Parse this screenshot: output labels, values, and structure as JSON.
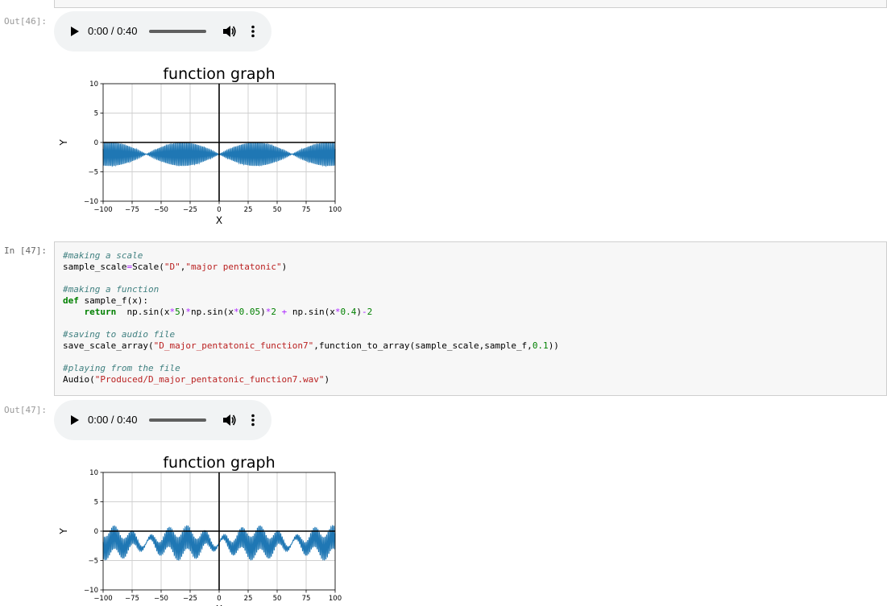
{
  "cells": {
    "out46": {
      "prompt": "Out[46]:",
      "audio": {
        "time": "0:00 / 0:40",
        "play_icon": "play-icon",
        "volume_icon": "volume-icon",
        "menu_icon": "more-vert-icon"
      }
    },
    "in47": {
      "prompt": "In [47]:",
      "code": [
        {
          "t": "cm",
          "v": "#making a scale"
        },
        {
          "t": "mix",
          "parts": [
            [
              "",
              "sample_scale"
            ],
            [
              "op",
              "="
            ],
            [
              "",
              "Scale("
            ],
            [
              "st",
              "\"D\""
            ],
            [
              "",
              ","
            ],
            [
              "st",
              "\"major pentatonic\""
            ],
            [
              "",
              ")"
            ]
          ]
        },
        {
          "t": "blank"
        },
        {
          "t": "cm",
          "v": "#making a function"
        },
        {
          "t": "mix",
          "parts": [
            [
              "kw",
              "def"
            ],
            [
              "",
              " sample_f(x):"
            ]
          ]
        },
        {
          "t": "mix",
          "parts": [
            [
              "",
              "    "
            ],
            [
              "kw",
              "return"
            ],
            [
              "",
              "  np.sin(x"
            ],
            [
              "op",
              "*"
            ],
            [
              "nu",
              "5"
            ],
            [
              "",
              ")"
            ],
            [
              "op",
              "*"
            ],
            [
              "",
              "np.sin(x"
            ],
            [
              "op",
              "*"
            ],
            [
              "nu",
              "0.05"
            ],
            [
              "",
              ")"
            ],
            [
              "op",
              "*"
            ],
            [
              "nu",
              "2"
            ],
            [
              "",
              " "
            ],
            [
              "op",
              "+"
            ],
            [
              "",
              " np.sin(x"
            ],
            [
              "op",
              "*"
            ],
            [
              "nu",
              "0.4"
            ],
            [
              "",
              ")"
            ],
            [
              "op",
              "-"
            ],
            [
              "nu",
              "2"
            ]
          ]
        },
        {
          "t": "blank"
        },
        {
          "t": "cm",
          "v": "#saving to audio file"
        },
        {
          "t": "mix",
          "parts": [
            [
              "",
              "save_scale_array("
            ],
            [
              "st",
              "\"D_major_pentatonic_function7\""
            ],
            [
              "",
              ",function_to_array(sample_scale,sample_f,"
            ],
            [
              "nu",
              "0.1"
            ],
            [
              "",
              "))"
            ]
          ]
        },
        {
          "t": "blank"
        },
        {
          "t": "cm",
          "v": "#playing from the file"
        },
        {
          "t": "mix",
          "parts": [
            [
              "",
              "Audio("
            ],
            [
              "st",
              "\"Produced/D_major_pentatonic_function7.wav\""
            ],
            [
              "",
              ")"
            ]
          ]
        }
      ]
    },
    "out47": {
      "prompt": "Out[47]:",
      "audio": {
        "time": "0:00 / 0:40",
        "play_icon": "play-icon",
        "volume_icon": "volume-icon",
        "menu_icon": "more-vert-icon"
      }
    }
  },
  "chart_data": [
    {
      "type": "line",
      "title": "function graph",
      "xlabel": "X",
      "ylabel": "Y",
      "xlim": [
        -100,
        100
      ],
      "ylim": [
        -10,
        10
      ],
      "xticks": [
        -100,
        -75,
        -50,
        -25,
        0,
        25,
        50,
        75,
        100
      ],
      "yticks": [
        10,
        5,
        0,
        -5,
        -10
      ],
      "grid": true,
      "function": "sin(5x)*sin(0.05x)*2 - 2",
      "series": [
        {
          "color": "#1f77b4"
        }
      ]
    },
    {
      "type": "line",
      "title": "function graph",
      "xlabel": "X",
      "ylabel": "Y",
      "xlim": [
        -100,
        100
      ],
      "ylim": [
        -10,
        10
      ],
      "xticks": [
        -100,
        -75,
        -50,
        -25,
        0,
        25,
        50,
        75,
        100
      ],
      "yticks": [
        10,
        5,
        0,
        -5,
        -10
      ],
      "grid": true,
      "function": "sin(5x)*sin(0.05x)*2 + sin(0.4x) - 2",
      "series": [
        {
          "color": "#1f77b4"
        }
      ]
    }
  ]
}
